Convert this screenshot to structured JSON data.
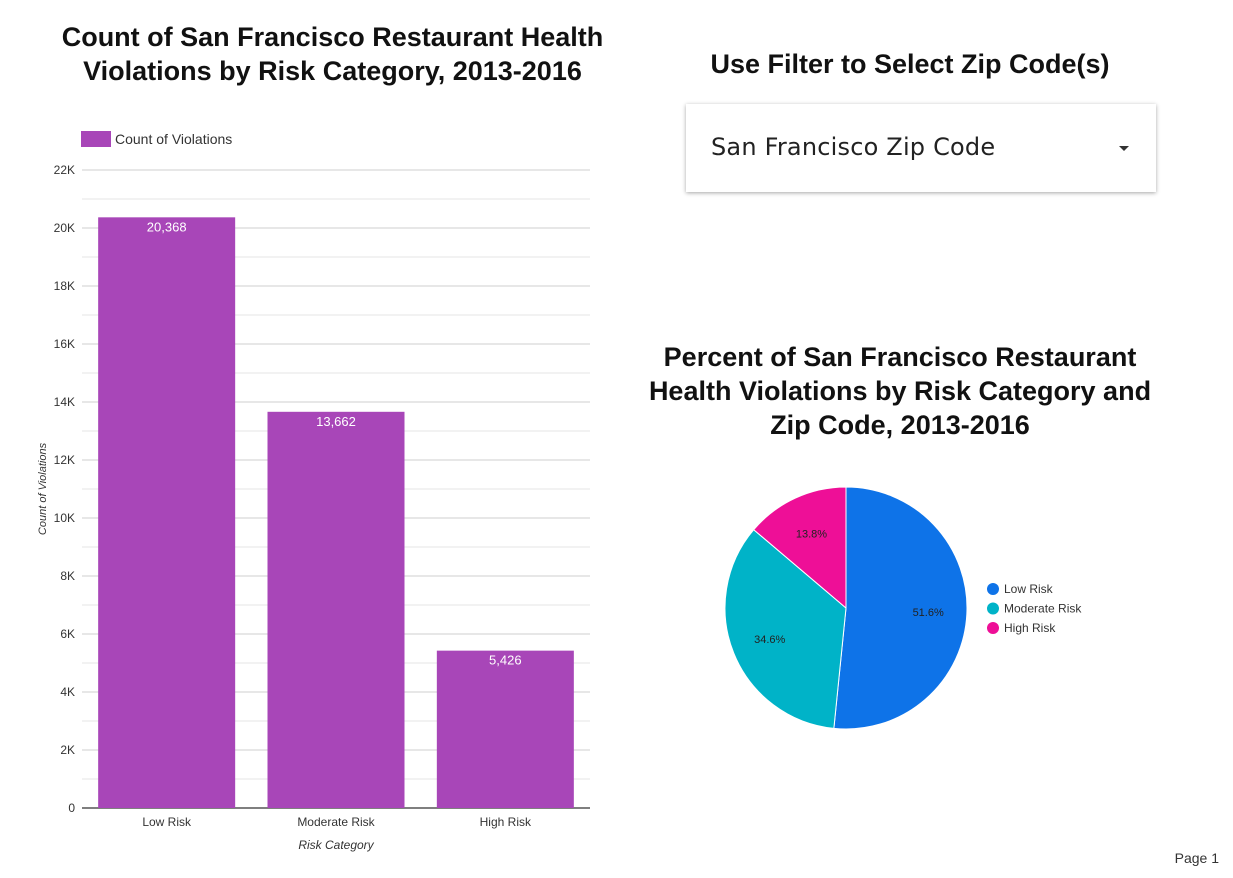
{
  "bar_chart": {
    "title": "Count of San Francisco Restaurant Health Violations by Risk Category, 2013-2016",
    "legend_label": "Count of Violations"
  },
  "filter": {
    "title": "Use Filter to Select Zip Code(s)",
    "label": "San Francisco Zip Code"
  },
  "pie_chart": {
    "title": "Percent of San Francisco Restaurant Health Violations by Risk Category and Zip Code, 2013-2016"
  },
  "footer": {
    "page_label": "Page 1"
  },
  "colors": {
    "bar": "#a846b8",
    "low_risk": "#0e73e8",
    "moderate_risk": "#00b3c8",
    "high_risk": "#ee0f97"
  },
  "chart_data": [
    {
      "type": "bar",
      "title": "Count of San Francisco Restaurant Health Violations by Risk Category, 2013-2016",
      "categories": [
        "Low Risk",
        "Moderate Risk",
        "High Risk"
      ],
      "series": [
        {
          "name": "Count of Violations",
          "values": [
            20368,
            13662,
            5426
          ],
          "data_labels": [
            "20,368",
            "13,662",
            "5,426"
          ]
        }
      ],
      "xlabel": "Risk Category",
      "ylabel": "Count of Violations",
      "ylim": [
        0,
        22000
      ],
      "yticks": [
        0,
        2000,
        4000,
        6000,
        8000,
        10000,
        12000,
        14000,
        16000,
        18000,
        20000,
        22000
      ],
      "ytick_labels": [
        "0",
        "2K",
        "4K",
        "6K",
        "8K",
        "10K",
        "12K",
        "14K",
        "16K",
        "18K",
        "20K",
        "22K"
      ],
      "grid": true,
      "legend": "top-left"
    },
    {
      "type": "pie",
      "title": "Percent of San Francisco Restaurant Health Violations by Risk Category and Zip Code, 2013-2016",
      "categories": [
        "Low Risk",
        "Moderate Risk",
        "High Risk"
      ],
      "values": [
        51.6,
        34.6,
        13.8
      ],
      "data_labels": [
        "51.6%",
        "34.6%",
        "13.8%"
      ],
      "colors": [
        "#0e73e8",
        "#00b3c8",
        "#ee0f97"
      ],
      "legend": "right"
    }
  ]
}
